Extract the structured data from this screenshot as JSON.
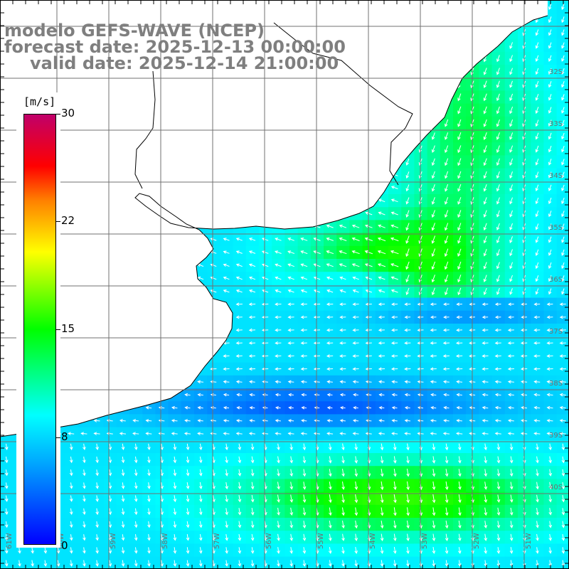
{
  "title": {
    "line1": "modelo GEFS-WAVE (NCEP)",
    "line2": "forecast date: 2025-12-13 00:00:00",
    "line3": "valid date: 2025-12-14 21:00:00"
  },
  "colorbar": {
    "unit": "[m/s]",
    "ticks": [
      "30",
      "22",
      "15",
      "8",
      "0"
    ]
  },
  "map": {
    "lat_labels": [
      "32S",
      "33S",
      "34S",
      "35S",
      "36S",
      "37S",
      "38S",
      "39S",
      "40S"
    ],
    "lon_labels": [
      "61W",
      "60W",
      "59W",
      "58W",
      "57W",
      "56W",
      "55W",
      "54W",
      "53W",
      "52W",
      "51W"
    ],
    "colors": {
      "land": "#ffffff",
      "coast": "#000000",
      "grid": "#707070",
      "arrow": "#ffffff"
    }
  }
}
